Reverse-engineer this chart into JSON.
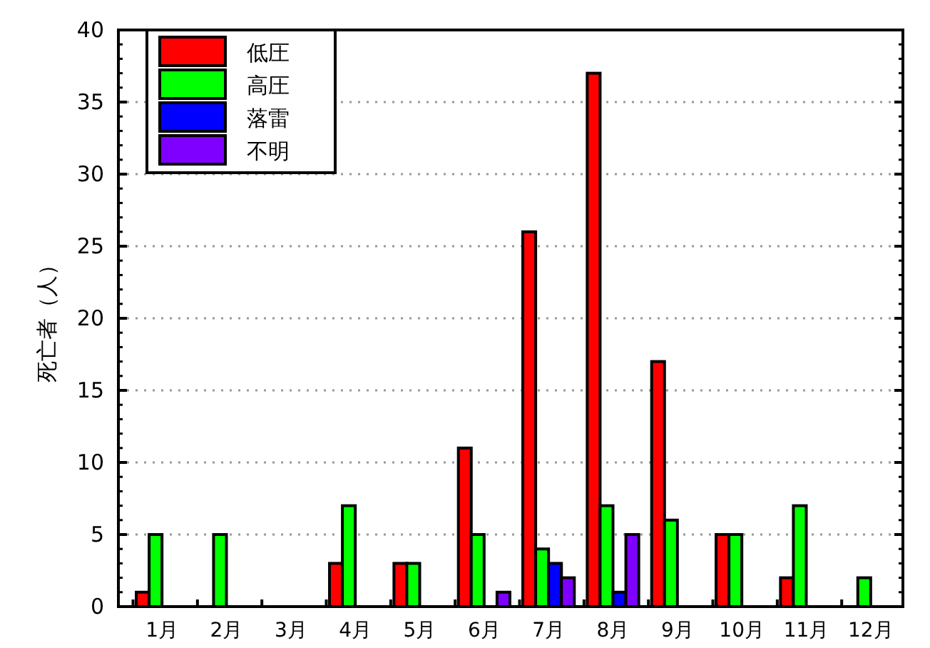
{
  "chart_data": {
    "type": "bar",
    "ylabel": "死亡者（人）",
    "categories": [
      "1月",
      "2月",
      "3月",
      "4月",
      "5月",
      "6月",
      "7月",
      "8月",
      "9月",
      "10月",
      "11月",
      "12月"
    ],
    "series": [
      {
        "name": "低圧",
        "color": "#ff0000",
        "values": [
          1,
          null,
          null,
          3,
          3,
          11,
          26,
          37,
          17,
          5,
          2,
          null
        ]
      },
      {
        "name": "高圧",
        "color": "#00ff00",
        "values": [
          5,
          5,
          null,
          7,
          3,
          5,
          4,
          7,
          6,
          5,
          7,
          2
        ]
      },
      {
        "name": "落雷",
        "color": "#0000ff",
        "values": [
          null,
          null,
          null,
          null,
          null,
          null,
          3,
          1,
          null,
          null,
          null,
          null
        ]
      },
      {
        "name": "不明",
        "color": "#8000ff",
        "values": [
          null,
          null,
          null,
          null,
          null,
          1,
          2,
          5,
          null,
          null,
          null,
          null
        ]
      }
    ],
    "ylim": [
      0,
      40
    ],
    "yticks": [
      0,
      5,
      10,
      15,
      20,
      25,
      30,
      35,
      40
    ],
    "grid": "y",
    "legend": "top left"
  }
}
